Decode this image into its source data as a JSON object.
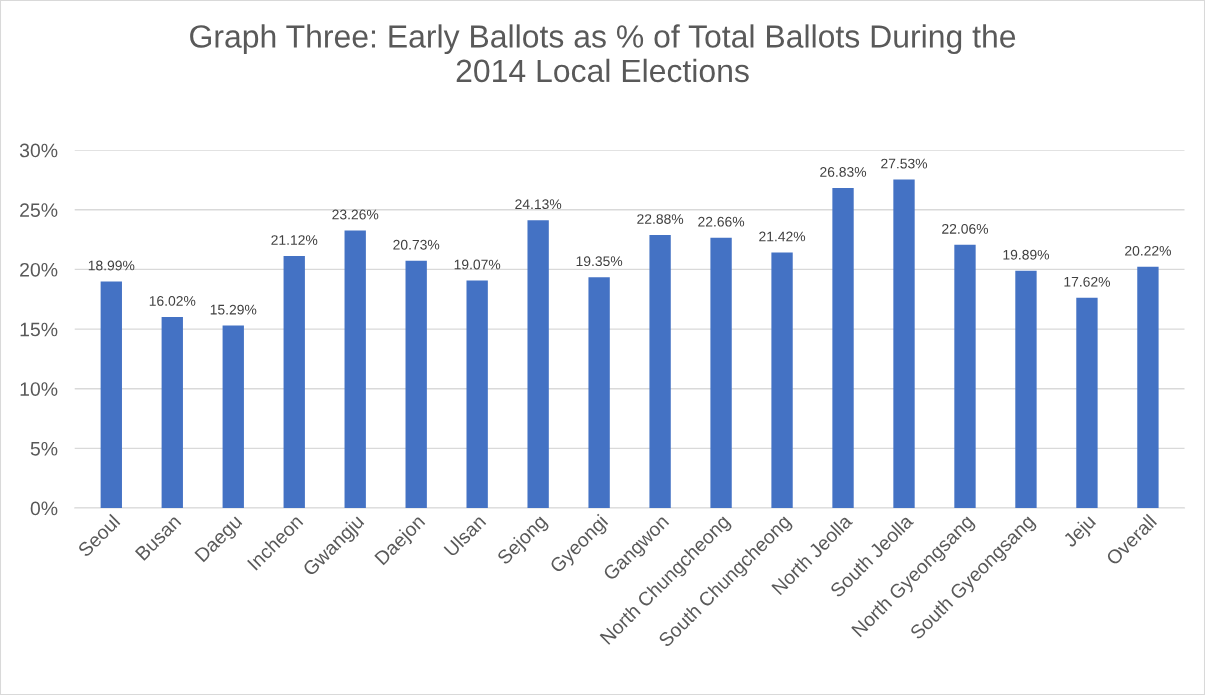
{
  "chart_data": {
    "type": "bar",
    "title": "Graph Three: Early Ballots as % of Total Ballots During the\n2014 Local Elections",
    "categories": [
      "Seoul",
      "Busan",
      "Daegu",
      "Incheon",
      "Gwangju",
      "Daejon",
      "Ulsan",
      "Sejong",
      "Gyeongi",
      "Gangwon",
      "North Chungcheong",
      "South Chungcheong",
      "North Jeolla",
      "South Jeolla",
      "North Gyeongsang",
      "South Gyeongsang",
      "Jeju",
      "Overall"
    ],
    "values": [
      18.99,
      16.02,
      15.29,
      21.12,
      23.26,
      20.73,
      19.07,
      24.13,
      19.35,
      22.88,
      22.66,
      21.42,
      26.83,
      27.53,
      22.06,
      19.89,
      17.62,
      20.22
    ],
    "value_labels": [
      "18.99%",
      "16.02%",
      "15.29%",
      "21.12%",
      "23.26%",
      "20.73%",
      "19.07%",
      "24.13%",
      "19.35%",
      "22.88%",
      "22.66%",
      "21.42%",
      "26.83%",
      "27.53%",
      "22.06%",
      "19.89%",
      "17.62%",
      "20.22%"
    ],
    "color": "#4472c4",
    "ylim": [
      0,
      30
    ],
    "yticks": [
      {
        "value": 0,
        "label": "0%"
      },
      {
        "value": 5,
        "label": "5%"
      },
      {
        "value": 10,
        "label": "10%"
      },
      {
        "value": 15,
        "label": "15%"
      },
      {
        "value": 20,
        "label": "20%"
      },
      {
        "value": 25,
        "label": "25%"
      },
      {
        "value": 30,
        "label": "30%"
      }
    ],
    "grid": "y",
    "legend": false
  }
}
